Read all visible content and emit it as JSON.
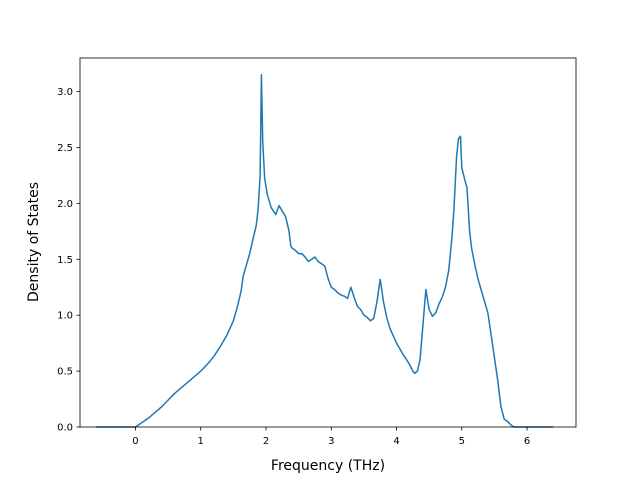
{
  "chart_data": {
    "type": "line",
    "title": "",
    "xlabel": "Frequency (THz)",
    "ylabel": "Density of States",
    "xlim": [
      -0.85,
      6.75
    ],
    "ylim": [
      0.0,
      3.3
    ],
    "xticks": [
      0,
      1,
      2,
      3,
      4,
      5,
      6
    ],
    "xtick_labels": [
      "0",
      "1",
      "2",
      "3",
      "4",
      "5",
      "6"
    ],
    "yticks": [
      0.0,
      0.5,
      1.0,
      1.5,
      2.0,
      2.5,
      3.0
    ],
    "ytick_labels": [
      "0.0",
      "0.5",
      "1.0",
      "1.5",
      "2.0",
      "2.5",
      "3.0"
    ],
    "grid": false,
    "line_color": "#1f77b4",
    "series": [
      {
        "x": [
          -0.6,
          0.0,
          0.1,
          0.2,
          0.3,
          0.4,
          0.5,
          0.6,
          0.7,
          0.8,
          0.9,
          1.0,
          1.1,
          1.2,
          1.3,
          1.4,
          1.5,
          1.55,
          1.58,
          1.62,
          1.65,
          1.7,
          1.75,
          1.8,
          1.85,
          1.88,
          1.91,
          1.93,
          1.95,
          1.98,
          2.02,
          2.08,
          2.15,
          2.2,
          2.25,
          2.3,
          2.35,
          2.38,
          2.4,
          2.45,
          2.5,
          2.55,
          2.6,
          2.65,
          2.7,
          2.75,
          2.8,
          2.85,
          2.9,
          2.95,
          3.0,
          3.05,
          3.1,
          3.15,
          3.2,
          3.25,
          3.3,
          3.35,
          3.4,
          3.45,
          3.5,
          3.55,
          3.6,
          3.65,
          3.7,
          3.75,
          3.8,
          3.85,
          3.9,
          4.0,
          4.1,
          4.2,
          4.25,
          4.28,
          4.32,
          4.36,
          4.4,
          4.45,
          4.5,
          4.55,
          4.6,
          4.65,
          4.7,
          4.75,
          4.8,
          4.85,
          4.88,
          4.92,
          4.95,
          4.98,
          5.0,
          5.05,
          5.08,
          5.12,
          5.15,
          5.2,
          5.25,
          5.3,
          5.35,
          5.4,
          5.45,
          5.5,
          5.55,
          5.6,
          5.65,
          5.7,
          5.75,
          5.8,
          6.4
        ],
        "y": [
          0.0,
          0.0,
          0.04,
          0.08,
          0.13,
          0.18,
          0.24,
          0.3,
          0.35,
          0.4,
          0.45,
          0.5,
          0.56,
          0.63,
          0.72,
          0.82,
          0.95,
          1.05,
          1.12,
          1.22,
          1.35,
          1.45,
          1.55,
          1.68,
          1.8,
          1.95,
          2.25,
          3.15,
          2.55,
          2.22,
          2.08,
          1.96,
          1.9,
          1.98,
          1.93,
          1.88,
          1.76,
          1.62,
          1.6,
          1.58,
          1.55,
          1.55,
          1.52,
          1.48,
          1.5,
          1.52,
          1.48,
          1.46,
          1.44,
          1.33,
          1.25,
          1.23,
          1.2,
          1.18,
          1.17,
          1.15,
          1.25,
          1.16,
          1.08,
          1.05,
          1.0,
          0.98,
          0.95,
          0.97,
          1.12,
          1.32,
          1.12,
          0.98,
          0.88,
          0.75,
          0.65,
          0.56,
          0.5,
          0.48,
          0.5,
          0.6,
          0.88,
          1.23,
          1.05,
          0.99,
          1.02,
          1.1,
          1.16,
          1.25,
          1.4,
          1.7,
          1.95,
          2.42,
          2.58,
          2.6,
          2.32,
          2.2,
          2.14,
          1.75,
          1.6,
          1.45,
          1.32,
          1.22,
          1.12,
          1.02,
          0.82,
          0.62,
          0.42,
          0.18,
          0.07,
          0.05,
          0.02,
          0.0,
          0.0
        ]
      }
    ]
  }
}
